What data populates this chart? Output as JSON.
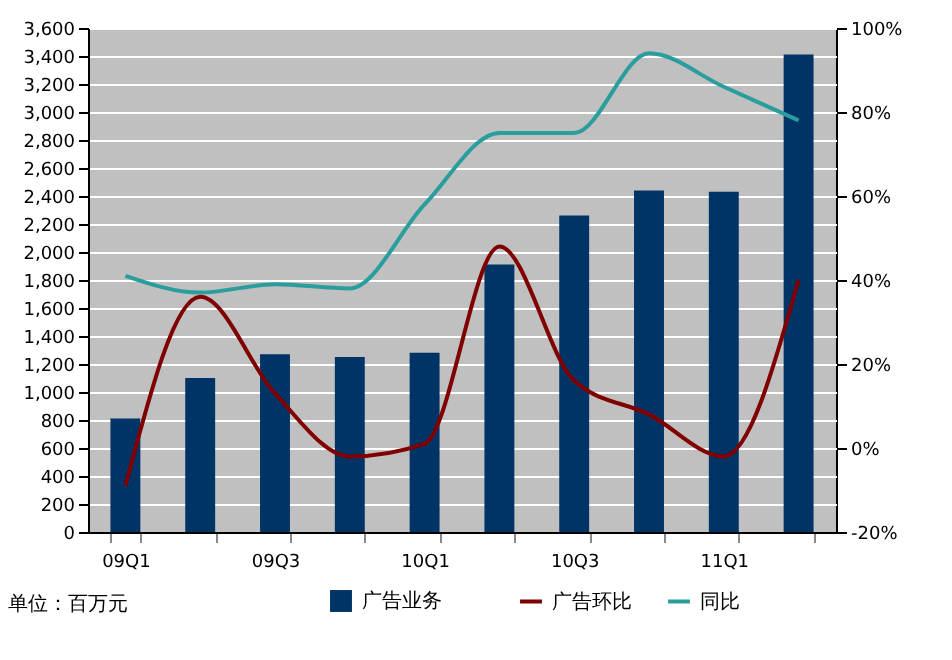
{
  "chart_data": {
    "type": "bar",
    "categories": [
      "09Q1",
      null,
      "09Q3",
      null,
      "10Q1",
      null,
      "10Q3",
      null,
      "11Q1",
      null
    ],
    "series": [
      {
        "name": "广告业务",
        "color": "#003366",
        "values": [
          810,
          1100,
          1270,
          1250,
          1280,
          1910,
          2260,
          2440,
          2430,
          3410
        ]
      },
      {
        "name": "广告环比",
        "type": "line",
        "axis": "y2",
        "color": "#800000",
        "values": [
          -9,
          36,
          13,
          -2,
          1,
          48,
          16,
          8,
          -2,
          40
        ]
      },
      {
        "name": "同比",
        "type": "line",
        "axis": "y2",
        "color": "#2a9d9d",
        "values": [
          41,
          37,
          39,
          38,
          58,
          75,
          75,
          94,
          86,
          78
        ]
      }
    ],
    "ylim": [
      0,
      3600
    ],
    "yticks": [
      0,
      200,
      400,
      600,
      800,
      {
        "value": 1000,
        "label": "1,000"
      },
      {
        "value": 1200,
        "label": "1,200"
      },
      {
        "value": 1400,
        "label": "1,400"
      },
      {
        "value": 1600,
        "label": "1,600"
      },
      {
        "value": 1800,
        "label": "1,800"
      },
      {
        "value": 2000,
        "label": "2,000"
      },
      {
        "value": 2200,
        "label": "2,200"
      },
      {
        "value": 2400,
        "label": "2,400"
      },
      {
        "value": 2600,
        "label": "2,600"
      },
      {
        "value": 2800,
        "label": "2,800"
      },
      {
        "value": 3000,
        "label": "3,000"
      },
      {
        "value": 3200,
        "label": "3,200"
      },
      {
        "value": 3400,
        "label": "3,400"
      },
      {
        "value": 3600,
        "label": "3,600"
      }
    ],
    "y2lim": [
      -20,
      100
    ],
    "y2ticks": [
      {
        "value": -20,
        "label": "-20%"
      },
      {
        "value": 0,
        "label": "0%"
      },
      {
        "value": 20,
        "label": "20%"
      },
      {
        "value": 40,
        "label": "40%"
      },
      {
        "value": 60,
        "label": "60%"
      },
      {
        "value": 80,
        "label": "80%"
      },
      {
        "value": 100,
        "label": "100%"
      }
    ],
    "grid": "y",
    "legend": "bottom",
    "annotations": [
      "单位：百万元"
    ]
  }
}
